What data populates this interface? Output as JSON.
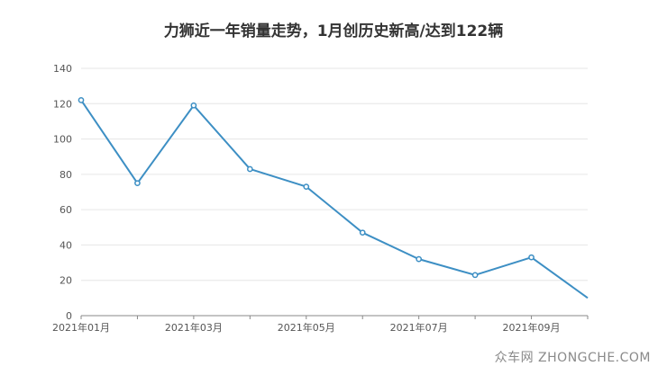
{
  "title": "力狮近一年销量走势，1月创历史新高/达到122辆",
  "watermark": "众车网 ZHONGCHE.COM",
  "colors": {
    "line": "#3d8fc4",
    "grid": "#e6e6e6",
    "axis": "#888888",
    "point_fill": "#ffffff"
  },
  "chart_data": {
    "type": "line",
    "title": "力狮近一年销量走势，1月创历史新高/达到122辆",
    "x": [
      "2021年01月",
      "2021年02月",
      "2021年03月",
      "2021年04月",
      "2021年05月",
      "2021年06月",
      "2021年07月",
      "2021年08月",
      "2021年09月",
      "2021年10月"
    ],
    "x_tick_labels": [
      "2021年01月",
      "2021年03月",
      "2021年05月",
      "2021年07月",
      "2021年09月"
    ],
    "series": [
      {
        "values": [
          122,
          75,
          119,
          83,
          73,
          47,
          32,
          23,
          33,
          10
        ]
      }
    ],
    "y_ticks": [
      0,
      20,
      40,
      60,
      80,
      100,
      120,
      140
    ],
    "ylim": [
      0,
      140
    ],
    "grid": true,
    "xlabel": "",
    "ylabel": ""
  }
}
